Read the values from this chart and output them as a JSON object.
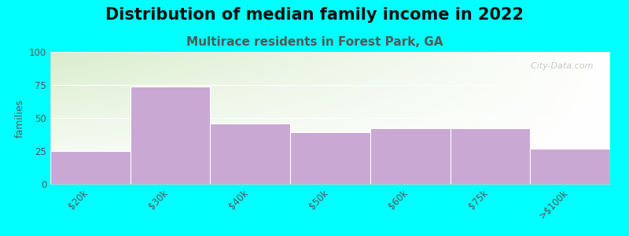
{
  "title": "Distribution of median family income in 2022",
  "subtitle": "Multirace residents in Forest Park, GA",
  "categories": [
    "$20k",
    "$30k",
    "$40k",
    "$50k",
    "$60k",
    "$75k",
    ">$100k"
  ],
  "values": [
    25,
    74,
    46,
    39,
    42,
    42,
    27
  ],
  "bar_color": "#c9a8d4",
  "ylabel": "families",
  "ylim": [
    0,
    100
  ],
  "yticks": [
    0,
    25,
    50,
    75,
    100
  ],
  "background_color": "#00ffff",
  "title_fontsize": 15,
  "title_color": "#111111",
  "subtitle_fontsize": 11,
  "subtitle_color": "#555555",
  "watermark": "  City-Data.com",
  "tick_color": "#555555",
  "tick_fontsize": 8.5
}
